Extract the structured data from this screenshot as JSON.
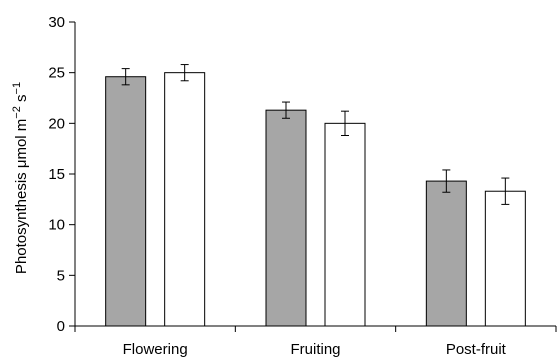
{
  "chart_data": {
    "type": "bar",
    "title": "",
    "xlabel": "",
    "ylabel": "Photosynthesis μmol m−2 s−1",
    "ylabel_parts": {
      "main": "Photosynthesis μmol m",
      "exp1": "−2",
      "mid": " s",
      "exp2": "−1"
    },
    "ylim": [
      0,
      30
    ],
    "yticks": [
      0,
      5,
      10,
      15,
      20,
      25,
      30
    ],
    "categories": [
      "Flowering",
      "Fruiting",
      "Post-fruit"
    ],
    "series": [
      {
        "values": [
          24.6,
          21.3,
          14.3
        ],
        "errors": [
          0.8,
          0.8,
          1.1
        ],
        "color": "#a6a6a6"
      },
      {
        "values": [
          25.0,
          20.0,
          13.3
        ],
        "errors": [
          0.8,
          1.2,
          1.3
        ],
        "color": "#ffffff"
      }
    ],
    "grid": false,
    "legend": "none"
  }
}
